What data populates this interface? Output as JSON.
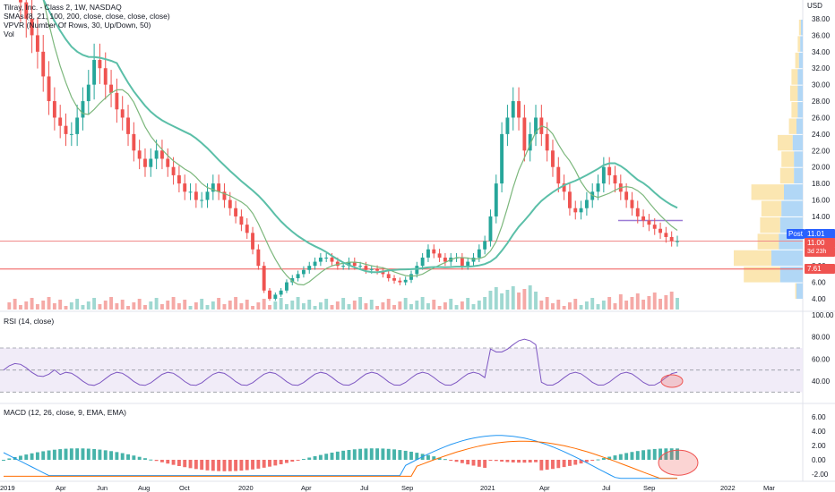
{
  "main": {
    "title": "Tilray, Inc. - Class 2, 1W, NASDAQ",
    "indicators": [
      "SMAs (8, 21, 100, 200, close, close, close, close)",
      "VPVR (Number Of Rows, 30, Up/Down, 50)",
      "Vol"
    ],
    "currency": "USD",
    "y_ticks": [
      "38.00",
      "36.00",
      "34.00",
      "32.00",
      "30.00",
      "28.00",
      "26.00",
      "24.00",
      "22.00",
      "20.00",
      "18.00",
      "16.00",
      "14.00",
      "12.00",
      "10.00",
      "8.00",
      "6.00",
      "4.00"
    ],
    "tags": {
      "post_label": "Post",
      "post_value": "11.01",
      "price_value": "11.00",
      "countdown": "3d 23h",
      "level_value": "7.61"
    },
    "colors": {
      "up": "#26a69a",
      "down": "#ef5350",
      "sma_fast": "#7cb77c",
      "sma_slow": "#5bbfa8",
      "red_line": "#f08a8a",
      "purple_line": "#9c7cd6"
    }
  },
  "rsi": {
    "label": "RSI (14, close)",
    "y_ticks": [
      "100.00",
      "80.00",
      "60.00",
      "40.00"
    ],
    "line_color": "#7e57c2"
  },
  "macd": {
    "label": "MACD (12, 26, close, 9, EMA, EMA)",
    "y_ticks": [
      "6.00",
      "4.00",
      "2.00",
      "0.00",
      "-2.00"
    ],
    "macd_color": "#2196f3",
    "signal_color": "#ff6d00"
  },
  "time_axis": {
    "labels": [
      "2019",
      "Apr",
      "Jun",
      "Aug",
      "Oct",
      "2020",
      "Apr",
      "Jul",
      "Sep",
      "2021",
      "Apr",
      "Jul",
      "Sep",
      "2022",
      "Mar"
    ]
  }
}
